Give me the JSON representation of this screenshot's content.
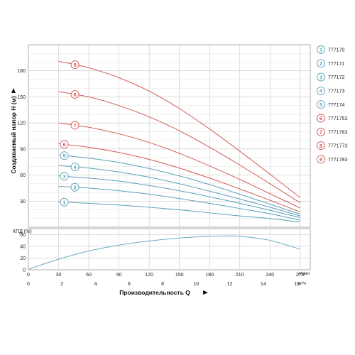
{
  "colors": {
    "blue": "#5aa0b8",
    "red": "#d45a55",
    "grid": "#c8c8c8",
    "frame": "#9a9a9a",
    "eff": "#6aaac4"
  },
  "chart_data": [
    {
      "type": "line",
      "title": "",
      "ylabel": "Создаваемый напор Н (м)",
      "ylim": [
        0,
        210
      ],
      "xlim": [
        0,
        280
      ],
      "yticks": [
        "30",
        "60",
        "90",
        "120",
        "150",
        "180"
      ],
      "grid": true,
      "series": [
        {
          "name": "777170",
          "marker": "1",
          "color": "blue",
          "x": [
            30,
            60,
            90,
            120,
            150,
            180,
            210,
            240,
            270
          ],
          "y": [
            29,
            27.5,
            25.5,
            23,
            20,
            16.5,
            13,
            10,
            6
          ]
        },
        {
          "name": "777171",
          "marker": "2",
          "color": "blue",
          "x": [
            30,
            60,
            90,
            120,
            150,
            180,
            210,
            240,
            270
          ],
          "y": [
            47,
            45,
            42,
            38,
            33,
            27.5,
            21.5,
            15.5,
            8
          ]
        },
        {
          "name": "777172",
          "marker": "3",
          "color": "blue",
          "x": [
            30,
            60,
            90,
            120,
            150,
            180,
            210,
            240,
            270
          ],
          "y": [
            59,
            56.5,
            53,
            48,
            42,
            35,
            27.5,
            19.5,
            11
          ]
        },
        {
          "name": "777173",
          "marker": "4",
          "color": "blue",
          "x": [
            30,
            60,
            90,
            120,
            150,
            180,
            210,
            240,
            270
          ],
          "y": [
            71,
            68,
            63.5,
            57.5,
            50,
            41.5,
            32.5,
            23,
            13
          ]
        },
        {
          "name": "777174",
          "marker": "5",
          "color": "blue",
          "x": [
            30,
            60,
            90,
            120,
            150,
            180,
            210,
            240,
            270
          ],
          "y": [
            83,
            79.5,
            74.5,
            67.5,
            59,
            49,
            38,
            26.5,
            15
          ]
        },
        {
          "name": "7771753",
          "marker": "6",
          "color": "red",
          "x": [
            30,
            60,
            90,
            120,
            150,
            180,
            210,
            240,
            270
          ],
          "y": [
            96,
            92,
            86,
            78,
            68,
            56.5,
            44,
            31,
            17.5
          ]
        },
        {
          "name": "7771763",
          "marker": "7",
          "color": "red",
          "x": [
            30,
            60,
            90,
            120,
            150,
            180,
            210,
            240,
            270
          ],
          "y": [
            120,
            115,
            107.5,
            97.5,
            85,
            70.5,
            55,
            38.5,
            22
          ]
        },
        {
          "name": "7771773",
          "marker": "8",
          "color": "red",
          "x": [
            30,
            60,
            90,
            120,
            150,
            180,
            210,
            240,
            270
          ],
          "y": [
            156,
            150,
            140,
            127,
            111,
            92,
            71.5,
            50,
            28
          ]
        },
        {
          "name": "7771783",
          "marker": "9",
          "color": "red",
          "x": [
            30,
            60,
            90,
            120,
            150,
            180,
            210,
            240,
            270
          ],
          "y": [
            191,
            183.5,
            172,
            156.5,
            136.5,
            113,
            87.5,
            61,
            34
          ]
        }
      ]
    },
    {
      "type": "line",
      "title": "",
      "ylabel": "КПД (%)",
      "ylim": [
        0,
        70
      ],
      "yticks": [
        "0",
        "20",
        "40",
        "60"
      ],
      "xlim": [
        0,
        280
      ],
      "xticks": [
        "0",
        "30",
        "60",
        "90",
        "120",
        "150",
        "180",
        "210",
        "240",
        "270"
      ],
      "xunit": "л/мин",
      "x2ticks": [
        "0",
        "2",
        "4",
        "6",
        "8",
        "10",
        "12",
        "14",
        "16"
      ],
      "x2unit": "м³/ч",
      "xlabel": "Производительность Q",
      "grid": true,
      "series": [
        {
          "name": "",
          "color": "eff",
          "x": [
            0,
            30,
            60,
            90,
            120,
            150,
            180,
            195,
            210,
            240,
            270
          ],
          "y": [
            1,
            18,
            32,
            42,
            49,
            54,
            57,
            57.5,
            57,
            50,
            35
          ]
        }
      ]
    }
  ]
}
